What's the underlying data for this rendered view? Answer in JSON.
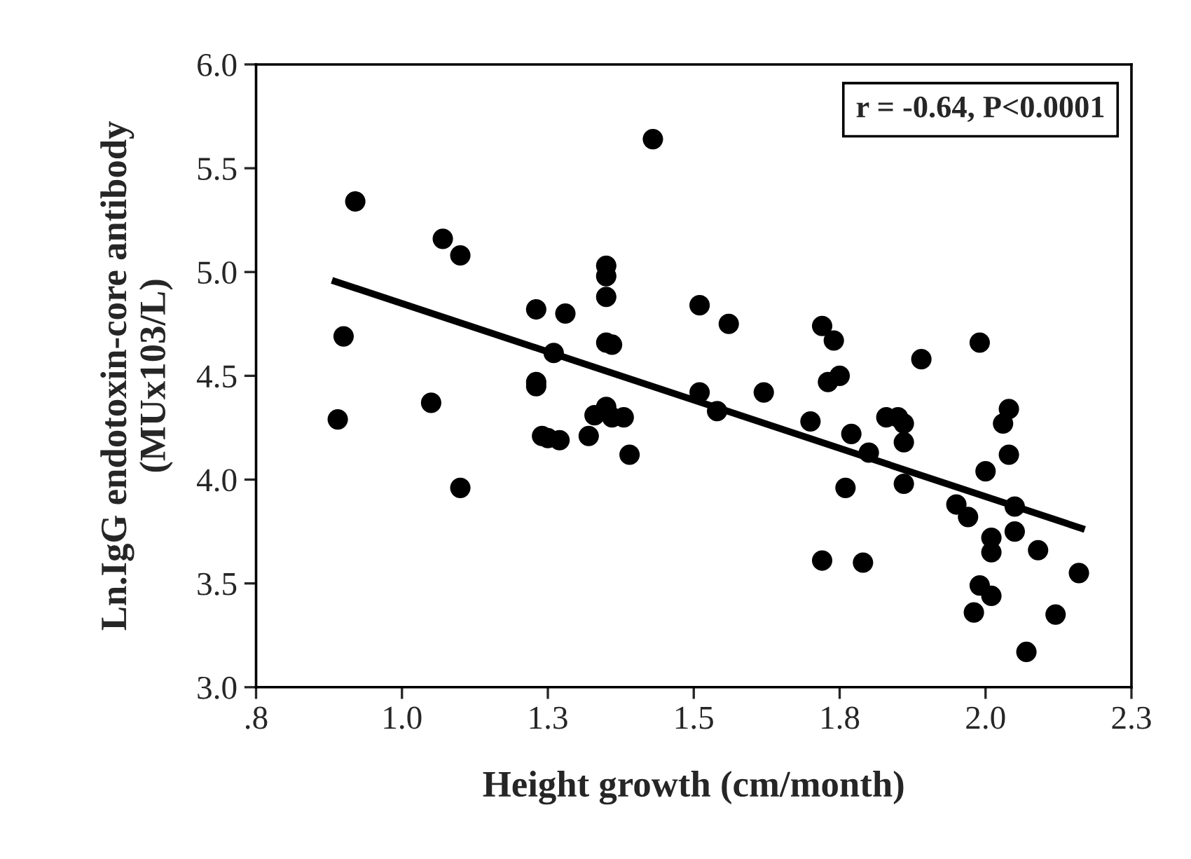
{
  "chart_data": {
    "type": "scatter",
    "xlabel": "Height growth (cm/month)",
    "ylabel": "Ln.IgG endotoxin-core antibody\n(MUx103/L)",
    "annotations": [
      "r = -0.64, P<0.0001"
    ],
    "xlim": [
      0.8,
      2.3
    ],
    "xticks": [
      {
        "value": 0.8,
        "label": ".8"
      },
      {
        "value": 1.05,
        "label": "1.0"
      },
      {
        "value": 1.3,
        "label": "1.3"
      },
      {
        "value": 1.55,
        "label": "1.5"
      },
      {
        "value": 1.8,
        "label": "1.8"
      },
      {
        "value": 2.05,
        "label": "2.0"
      },
      {
        "value": 2.3,
        "label": "2.3"
      }
    ],
    "ylim": [
      3.0,
      6.0
    ],
    "yticks": [
      {
        "value": 3.0,
        "label": "3.0"
      },
      {
        "value": 3.5,
        "label": "3.5"
      },
      {
        "value": 4.0,
        "label": "4.0"
      },
      {
        "value": 4.5,
        "label": "4.5"
      },
      {
        "value": 5.0,
        "label": "5.0"
      },
      {
        "value": 5.5,
        "label": "5.5"
      },
      {
        "value": 6.0,
        "label": "6.0"
      }
    ],
    "grid": false,
    "legend": false,
    "marker": "circle",
    "series": [
      {
        "color": "#000000",
        "x": [
          0.97,
          0.95,
          0.94,
          1.12,
          1.15,
          1.1,
          1.15,
          1.28,
          1.33,
          1.31,
          1.28,
          1.28,
          1.29,
          1.3,
          1.32,
          1.37,
          1.4,
          1.4,
          1.4,
          1.4,
          1.41,
          1.38,
          1.4,
          1.41,
          1.43,
          1.44,
          1.48,
          1.56,
          1.56,
          1.59,
          1.61,
          1.67,
          1.77,
          1.79,
          1.78,
          1.8,
          1.75,
          1.82,
          1.85,
          1.81,
          1.77,
          1.84,
          1.94,
          1.88,
          1.9,
          1.91,
          1.91,
          1.91,
          2.04,
          2.09,
          2.08,
          2.09,
          2.05,
          2.0,
          2.02,
          2.1,
          2.1,
          2.06,
          2.06,
          2.14,
          2.04,
          2.06,
          2.03,
          2.21,
          2.17,
          2.12
        ],
        "values": [
          5.34,
          4.69,
          4.29,
          5.16,
          5.08,
          4.37,
          3.96,
          4.82,
          4.8,
          4.61,
          4.47,
          4.45,
          4.21,
          4.2,
          4.19,
          4.21,
          5.03,
          4.98,
          4.88,
          4.66,
          4.65,
          4.31,
          4.35,
          4.3,
          4.3,
          4.12,
          5.64,
          4.84,
          4.42,
          4.33,
          4.75,
          4.42,
          4.74,
          4.67,
          4.47,
          4.5,
          4.28,
          4.22,
          4.13,
          3.96,
          3.61,
          3.6,
          4.58,
          4.3,
          4.3,
          4.27,
          4.18,
          3.98,
          4.66,
          4.34,
          4.27,
          4.12,
          4.04,
          3.88,
          3.82,
          3.87,
          3.75,
          3.72,
          3.65,
          3.66,
          3.49,
          3.44,
          3.36,
          3.55,
          3.35,
          3.17
        ]
      },
      {
        "type": "line",
        "color": "#000000",
        "marker": "none",
        "line_style": "solid",
        "x": [
          0.93,
          2.22
        ],
        "values": [
          4.96,
          3.76
        ]
      }
    ]
  }
}
